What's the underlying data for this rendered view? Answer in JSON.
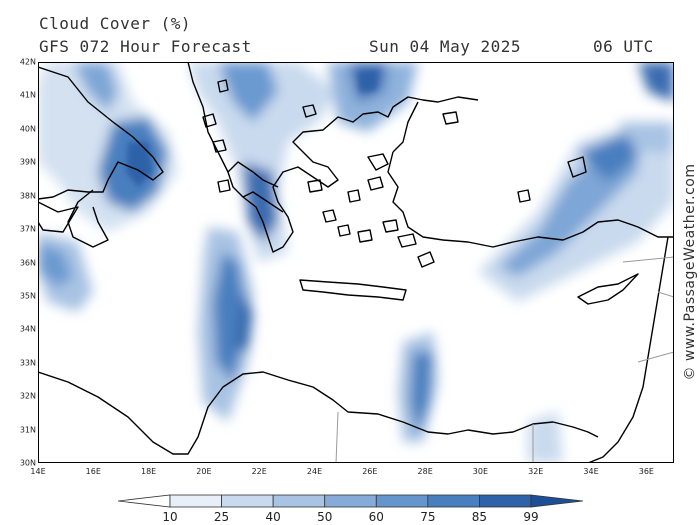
{
  "header": {
    "title": "Cloud Cover (%)",
    "subtitle": "GFS 072 Hour Forecast",
    "date": "Sun 04 May 2025",
    "time": "06 UTC"
  },
  "credit": "© www.PassageWeather.com",
  "lat_ticks": [
    "42N",
    "41N",
    "40N",
    "39N",
    "38N",
    "37N",
    "36N",
    "35N",
    "34N",
    "33N",
    "32N",
    "31N",
    "30N"
  ],
  "lon_ticks": [
    "14E",
    "16E",
    "18E",
    "20E",
    "22E",
    "24E",
    "26E",
    "28E",
    "30E",
    "32E",
    "34E",
    "36E"
  ],
  "legend": {
    "levels": [
      "10",
      "25",
      "40",
      "50",
      "60",
      "75",
      "85",
      "99"
    ],
    "colors": [
      "#ffffff",
      "#e8eff8",
      "#c9daee",
      "#a8c3e3",
      "#86abd8",
      "#6495cc",
      "#4a7fbf",
      "#2f62a8",
      "#1d4f97"
    ]
  },
  "map_extent": {
    "lon": [
      14,
      37
    ],
    "lat": [
      30,
      42
    ]
  }
}
